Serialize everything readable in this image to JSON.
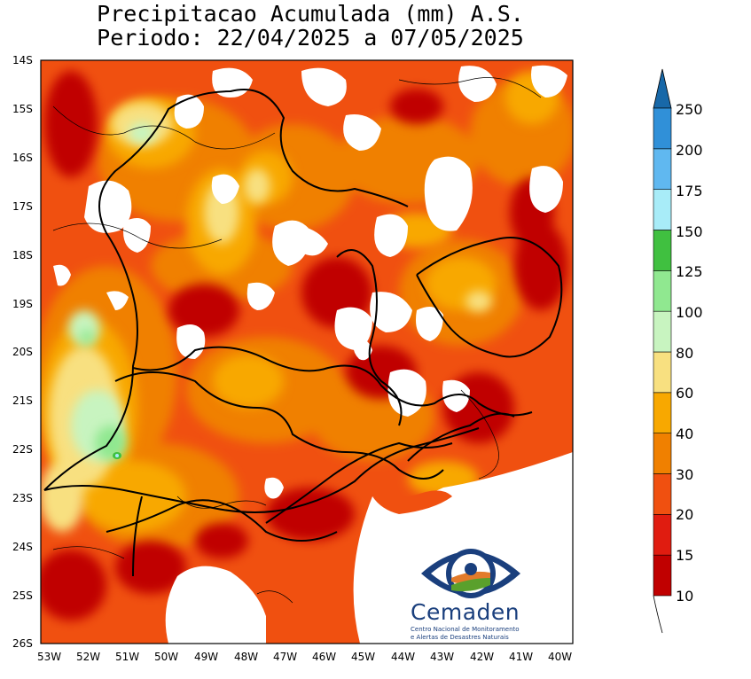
{
  "title": {
    "line1": "Precipitacao Acumulada (mm) A.S.",
    "line2": "Periodo: 22/04/2025 a 07/05/2025"
  },
  "axes": {
    "lat_labels": [
      "14S",
      "15S",
      "16S",
      "17S",
      "18S",
      "19S",
      "20S",
      "21S",
      "22S",
      "23S",
      "24S",
      "25S",
      "26S"
    ],
    "lon_labels": [
      "53W",
      "52W",
      "51W",
      "50W",
      "49W",
      "48W",
      "47W",
      "46W",
      "45W",
      "44W",
      "43W",
      "42W",
      "41W",
      "40W"
    ]
  },
  "colorbar": {
    "levels": [
      "10",
      "15",
      "20",
      "30",
      "40",
      "60",
      "80",
      "100",
      "125",
      "150",
      "175",
      "200",
      "250"
    ],
    "colors": [
      "#c00000",
      "#e01c10",
      "#f05010",
      "#f08000",
      "#f8a800",
      "#f8e080",
      "#c8f4c0",
      "#90e890",
      "#40c040",
      "#a8ecf8",
      "#60b8f0",
      "#3090d8",
      "#1868a8",
      "#1868a8"
    ]
  },
  "logo": {
    "name": "Cemaden",
    "subtitle1": "Centro Nacional de Monitoramento",
    "subtitle2": "e Alertas de Desastres Naturais"
  }
}
